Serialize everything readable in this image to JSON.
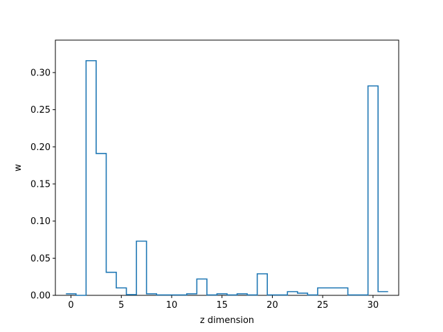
{
  "chart_data": {
    "type": "line",
    "style": "step-histogram",
    "title": "",
    "xlabel": "z dimension",
    "ylabel": "w",
    "xlim": [
      -1.55,
      32.55
    ],
    "ylim": [
      0,
      0.3437
    ],
    "x_ticks": [
      0,
      5,
      10,
      15,
      20,
      25,
      30
    ],
    "y_ticks": [
      0.0,
      0.05,
      0.1,
      0.15,
      0.2,
      0.25,
      0.3
    ],
    "y_tick_labels": [
      "0.00",
      "0.05",
      "0.10",
      "0.15",
      "0.20",
      "0.25",
      "0.30"
    ],
    "grid": false,
    "color": "#1f77b4",
    "series": [
      {
        "x": [
          0,
          1,
          2,
          3,
          4,
          5,
          6,
          7,
          8,
          9,
          10,
          11,
          12,
          13,
          14,
          15,
          16,
          17,
          18,
          19,
          20,
          21,
          22,
          23,
          24,
          25,
          26,
          27,
          28,
          29,
          30,
          31
        ],
        "values": [
          0.002,
          0.0,
          0.316,
          0.191,
          0.031,
          0.01,
          0.001,
          0.073,
          0.002,
          0.0005,
          0.0005,
          0.0005,
          0.002,
          0.022,
          0.0005,
          0.002,
          0.0005,
          0.002,
          0.0005,
          0.029,
          0.0005,
          0.0005,
          0.005,
          0.003,
          0.0005,
          0.01,
          0.01,
          0.01,
          0.0005,
          0.0005,
          0.282,
          0.005
        ]
      }
    ]
  }
}
